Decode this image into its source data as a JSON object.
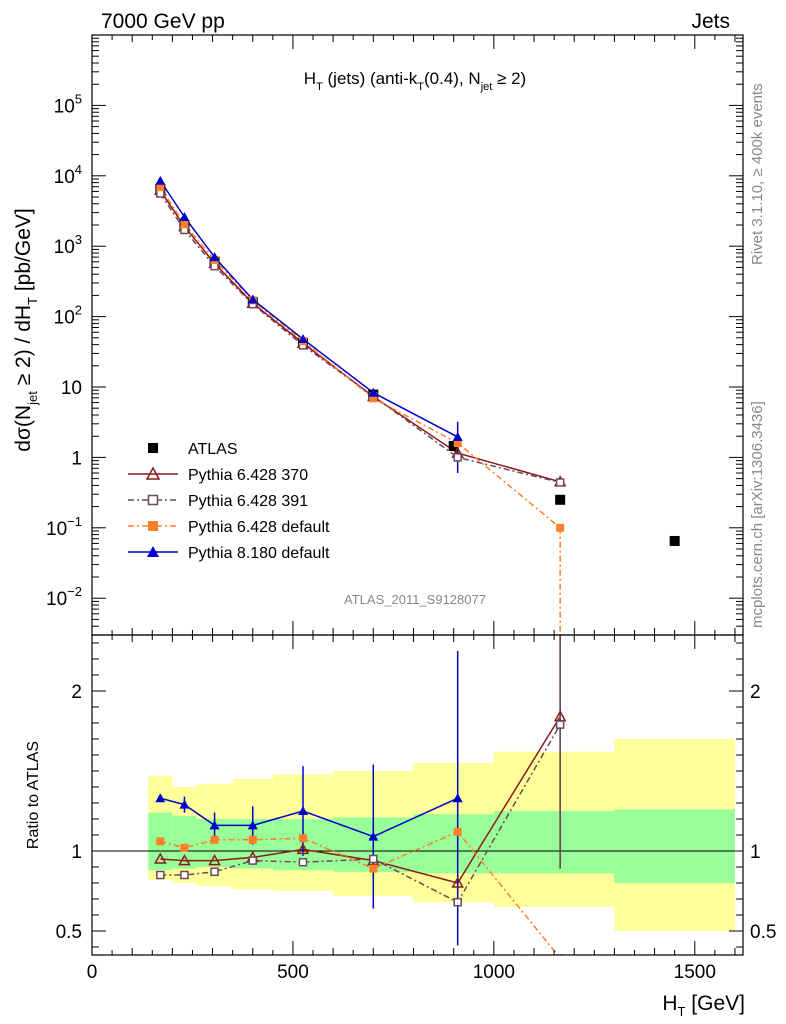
{
  "header": {
    "left": "7000 GeV pp",
    "right": "Jets"
  },
  "side_labels": {
    "rivet": "Rivet 3.1.10, ≥ 400k events",
    "mcplots": "mcplots.cern.ch [arXiv:1306.3436]"
  },
  "analysis_id": "ATLAS_2011_S9128077",
  "chart_data": {
    "type": "line",
    "title": "H_T (jets) (anti-k_T(0.4), N_jet ≥ 2)",
    "xlabel": "H_T [GeV]",
    "ylabel": "dσ(N_jet ≥ 2) / dH_T [pb/GeV]",
    "ratio_ylabel": "Ratio to ATLAS",
    "xlim": [
      0,
      1620
    ],
    "ylim_log": [
      0.003,
      1000000
    ],
    "ratio_ylim": [
      0.35,
      2.35
    ],
    "y_scale": "log",
    "legend_position": "middle-left",
    "x_ticks": [
      "0",
      "500",
      "1000",
      "1500"
    ],
    "y_ticks": [
      "10^-2",
      "10^-1",
      "1",
      "10",
      "10^2",
      "10^3",
      "10^4",
      "10^5"
    ],
    "ratio_ticks": [
      "0.5",
      "1",
      "2"
    ],
    "bins": [
      [
        140,
        200
      ],
      [
        200,
        260
      ],
      [
        260,
        350
      ],
      [
        350,
        450
      ],
      [
        450,
        600
      ],
      [
        600,
        800
      ],
      [
        800,
        1000
      ],
      [
        1000,
        1300
      ],
      [
        1300,
        1600
      ]
    ],
    "bands": {
      "inner": [
        [
          0.88,
          1.24
        ],
        [
          0.89,
          1.22
        ],
        [
          0.9,
          1.2
        ],
        [
          0.89,
          1.2
        ],
        [
          0.88,
          1.2
        ],
        [
          0.87,
          1.21
        ],
        [
          0.86,
          1.23
        ],
        [
          0.86,
          1.25
        ],
        [
          0.8,
          1.26
        ]
      ],
      "outer": [
        [
          0.82,
          1.47
        ],
        [
          0.8,
          1.4
        ],
        [
          0.78,
          1.42
        ],
        [
          0.76,
          1.45
        ],
        [
          0.75,
          1.48
        ],
        [
          0.72,
          1.5
        ],
        [
          0.68,
          1.55
        ],
        [
          0.65,
          1.62
        ],
        [
          0.5,
          1.7
        ]
      ],
      "inner_color": "#99ff99",
      "outer_color": "#ffff99"
    },
    "series": [
      {
        "name": "ATLAS",
        "color": "#000000",
        "marker": "square-filled",
        "x": [
          170,
          230,
          305,
          400,
          525,
          700,
          900,
          1165,
          1450
        ],
        "y": [
          6500,
          2000,
          600,
          160,
          42,
          7.8,
          1.45,
          0.25,
          0.065
        ]
      },
      {
        "name": "Pythia 6.428 370",
        "color": "#8b1a1a",
        "marker": "triangle-open",
        "x": [
          170,
          230,
          305,
          400,
          525,
          700,
          910,
          1165
        ],
        "y": [
          6200,
          1900,
          570,
          155,
          42,
          7.3,
          1.15,
          0.45
        ],
        "ratio": [
          0.95,
          0.94,
          0.94,
          0.96,
          1.01,
          0.94,
          0.8,
          1.84
        ],
        "ratio_err": [
          0,
          0,
          0,
          0,
          0,
          0,
          0,
          0.95
        ]
      },
      {
        "name": "Pythia 6.428 391",
        "color": "#6b4a5a",
        "marker": "square-open",
        "x": [
          170,
          230,
          305,
          400,
          525,
          700,
          910,
          1165
        ],
        "y": [
          5600,
          1700,
          520,
          150,
          39,
          7.4,
          1.0,
          0.44
        ],
        "ratio": [
          0.85,
          0.85,
          0.87,
          0.94,
          0.93,
          0.95,
          0.68,
          1.79
        ],
        "ratio_err": [
          0,
          0,
          0,
          0,
          0,
          0,
          0,
          0.9
        ]
      },
      {
        "name": "Pythia 6.428 default",
        "color": "#ff7f2a",
        "marker": "square-filled",
        "x": [
          170,
          230,
          305,
          400,
          525,
          700,
          910,
          1165
        ],
        "y": [
          6900,
          2050,
          640,
          170,
          45,
          6.9,
          1.6,
          0.1
        ],
        "ratio": [
          1.06,
          1.02,
          1.07,
          1.07,
          1.08,
          0.89,
          1.12,
          0.33
        ],
        "ratio_err": [
          0,
          0,
          0,
          0,
          0,
          0,
          0,
          0
        ]
      },
      {
        "name": "Pythia 8.180 default",
        "color": "#0000cc",
        "marker": "triangle-filled",
        "x": [
          170,
          230,
          305,
          400,
          525,
          700,
          910
        ],
        "y": [
          8500,
          2600,
          700,
          175,
          48,
          8.3,
          1.95
        ],
        "ratio": [
          1.33,
          1.29,
          1.16,
          1.16,
          1.25,
          1.09,
          1.33
        ],
        "ratio_err": [
          0,
          0.05,
          0.08,
          0.12,
          0.28,
          0.45,
          0.92
        ]
      }
    ]
  }
}
